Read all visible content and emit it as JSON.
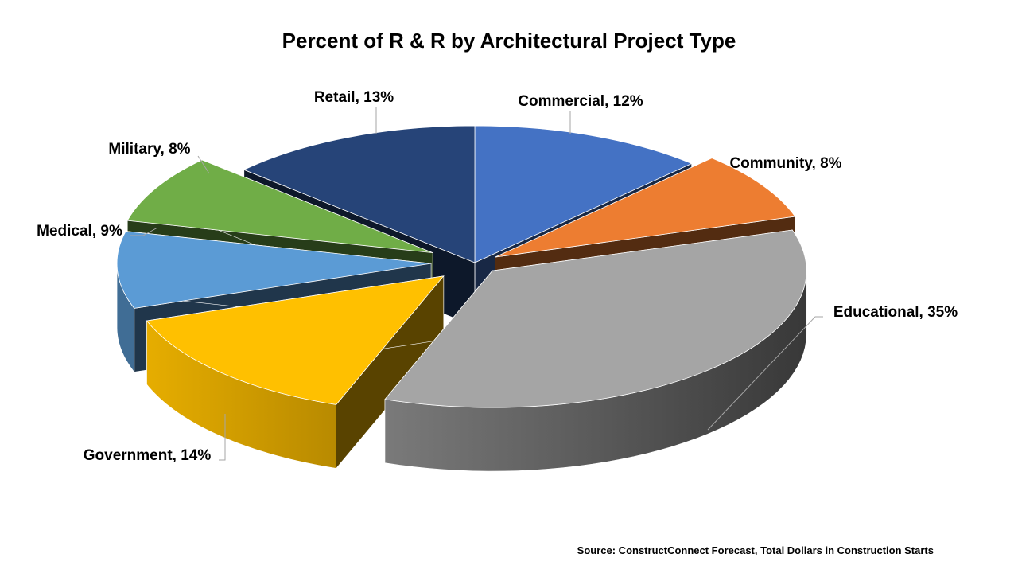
{
  "chart_data": {
    "type": "pie",
    "title": "Percent of R & R by Architectural Project Type",
    "value_format": "percent",
    "legend": "none",
    "grid": false,
    "slices": [
      {
        "name": "Commercial",
        "value": 12,
        "label": "Commercial, 12%",
        "color": "#4472C4"
      },
      {
        "name": "Community",
        "value": 8,
        "label": "Community, 8%",
        "color": "#ED7D31"
      },
      {
        "name": "Educational",
        "value": 35,
        "label": "Educational, 35%",
        "color": "#A5A5A5"
      },
      {
        "name": "Government",
        "value": 14,
        "label": "Government, 14%",
        "color": "#FFC000"
      },
      {
        "name": "Medical",
        "value": 9,
        "label": "Medical, 9%",
        "color": "#5B9BD5"
      },
      {
        "name": "Military",
        "value": 8,
        "label": "Military, 8%",
        "color": "#70AD47"
      },
      {
        "name": "Retail",
        "value": 13,
        "label": "Retail, 13%",
        "color": "#264478"
      }
    ]
  },
  "source": "Source: ConstructConnect Forecast, Total Dollars in Construction Starts"
}
